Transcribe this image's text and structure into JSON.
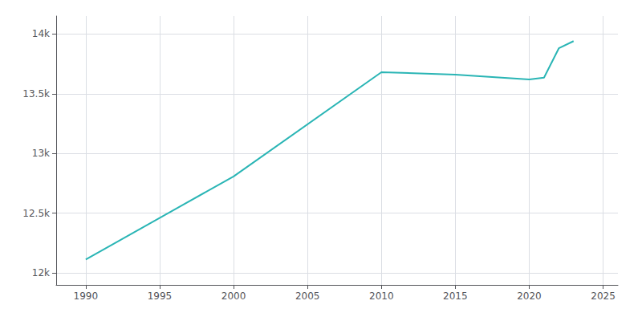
{
  "chart_data": {
    "type": "line",
    "x": [
      1990,
      2000,
      2010,
      2015,
      2020,
      2021,
      2022,
      2023
    ],
    "values": [
      12113,
      12808,
      13680,
      13660,
      13620,
      13635,
      13880,
      13940
    ],
    "color": "#2ab5b5",
    "xlim": [
      1988,
      2026
    ],
    "ylim": [
      11900,
      14150
    ],
    "xticks": [
      1990,
      1995,
      2000,
      2005,
      2010,
      2015,
      2020,
      2025
    ],
    "yticks": [
      {
        "value": 12000,
        "label": "12k"
      },
      {
        "value": 12500,
        "label": "12.5k"
      },
      {
        "value": 13000,
        "label": "13k"
      },
      {
        "value": 13500,
        "label": "13.5k"
      },
      {
        "value": 14000,
        "label": "14k"
      }
    ],
    "grid": true
  }
}
